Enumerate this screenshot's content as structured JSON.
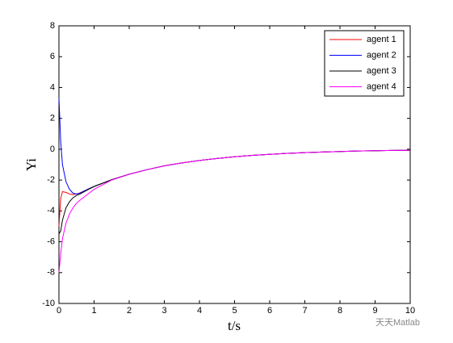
{
  "chart_data": {
    "type": "line",
    "xlabel": "t/s",
    "ylabel": "Yi",
    "x": [
      0,
      0.05,
      0.1,
      0.2,
      0.3,
      0.4,
      0.5,
      0.6,
      0.8,
      1,
      1.5,
      2,
      2.5,
      3,
      3.5,
      4,
      4.5,
      5,
      5.5,
      6,
      6.5,
      7,
      7.5,
      8,
      8.5,
      9,
      9.5,
      10
    ],
    "series": [
      {
        "name": "agent 1",
        "color": "#ff0000",
        "values": [
          -5,
          -3.2,
          -2.75,
          -2.8,
          -2.9,
          -2.95,
          -2.9,
          -2.83,
          -2.62,
          -2.41,
          -1.98,
          -1.62,
          -1.33,
          -1.08,
          -0.89,
          -0.73,
          -0.6,
          -0.49,
          -0.4,
          -0.33,
          -0.27,
          -0.22,
          -0.18,
          -0.15,
          -0.12,
          -0.1,
          -0.08,
          -0.07
        ]
      },
      {
        "name": "agent 2",
        "color": "#0000ff",
        "values": [
          3.3,
          0.5,
          -1.0,
          -2.1,
          -2.6,
          -2.85,
          -2.9,
          -2.85,
          -2.62,
          -2.41,
          -1.98,
          -1.62,
          -1.33,
          -1.08,
          -0.89,
          -0.73,
          -0.6,
          -0.49,
          -0.4,
          -0.33,
          -0.27,
          -0.22,
          -0.18,
          -0.15,
          -0.12,
          -0.1,
          -0.08,
          -0.07
        ]
      },
      {
        "name": "agent 3",
        "color": "#000000",
        "values": [
          -5.5,
          -5.3,
          -4.6,
          -3.8,
          -3.4,
          -3.15,
          -3.0,
          -2.9,
          -2.65,
          -2.42,
          -1.98,
          -1.62,
          -1.33,
          -1.08,
          -0.89,
          -0.73,
          -0.6,
          -0.49,
          -0.4,
          -0.33,
          -0.27,
          -0.22,
          -0.18,
          -0.15,
          -0.12,
          -0.1,
          -0.08,
          -0.07
        ]
      },
      {
        "name": "agent 4",
        "color": "#ff00ff",
        "values": [
          -8,
          -6.8,
          -5.8,
          -4.8,
          -4.2,
          -3.8,
          -3.5,
          -3.3,
          -2.95,
          -2.6,
          -2.0,
          -1.62,
          -1.33,
          -1.08,
          -0.89,
          -0.73,
          -0.6,
          -0.49,
          -0.4,
          -0.33,
          -0.27,
          -0.22,
          -0.18,
          -0.15,
          -0.12,
          -0.1,
          -0.08,
          -0.07
        ]
      }
    ],
    "xlim": [
      0,
      10
    ],
    "xticks": [
      0,
      1,
      2,
      3,
      4,
      5,
      6,
      7,
      8,
      9,
      10
    ],
    "ylim": [
      -10,
      8
    ],
    "yticks": [
      -10,
      -8,
      -6,
      -4,
      -2,
      0,
      2,
      4,
      6,
      8
    ],
    "legend": "top-right",
    "grid": false,
    "watermark": "天天Matlab"
  }
}
